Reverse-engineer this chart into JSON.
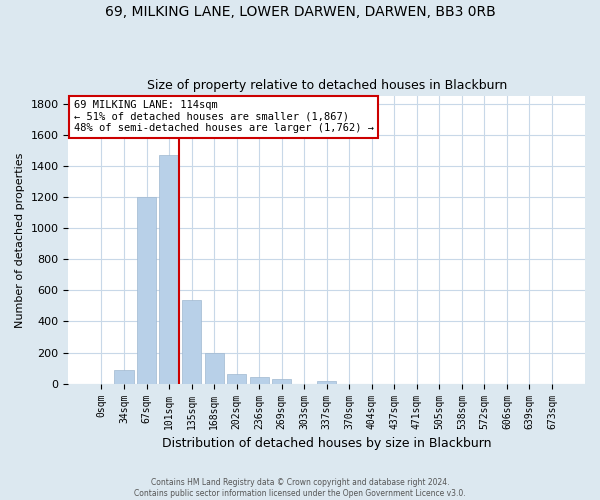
{
  "title1": "69, MILKING LANE, LOWER DARWEN, DARWEN, BB3 0RB",
  "title2": "Size of property relative to detached houses in Blackburn",
  "xlabel": "Distribution of detached houses by size in Blackburn",
  "ylabel": "Number of detached properties",
  "bar_labels": [
    "0sqm",
    "34sqm",
    "67sqm",
    "101sqm",
    "135sqm",
    "168sqm",
    "202sqm",
    "236sqm",
    "269sqm",
    "303sqm",
    "337sqm",
    "370sqm",
    "404sqm",
    "437sqm",
    "471sqm",
    "505sqm",
    "538sqm",
    "572sqm",
    "606sqm",
    "639sqm",
    "673sqm"
  ],
  "bar_heights": [
    0,
    90,
    1200,
    1470,
    540,
    200,
    65,
    45,
    28,
    0,
    15,
    0,
    0,
    0,
    0,
    0,
    0,
    0,
    0,
    0,
    0
  ],
  "bar_color": "#b8d0e8",
  "bar_edgecolor": "#a0b8d0",
  "vline_x": 3.43,
  "vline_color": "#cc0000",
  "annotation_title": "69 MILKING LANE: 114sqm",
  "annotation_line1": "← 51% of detached houses are smaller (1,867)",
  "annotation_line2": "48% of semi-detached houses are larger (1,762) →",
  "annotation_box_edgecolor": "#cc0000",
  "ylim": [
    0,
    1850
  ],
  "yticks": [
    0,
    200,
    400,
    600,
    800,
    1000,
    1200,
    1400,
    1600,
    1800
  ],
  "footer1": "Contains HM Land Registry data © Crown copyright and database right 2024.",
  "footer2": "Contains public sector information licensed under the Open Government Licence v3.0.",
  "background_color": "#dce8f0",
  "plot_background": "#ffffff",
  "grid_color": "#c8d8e8"
}
